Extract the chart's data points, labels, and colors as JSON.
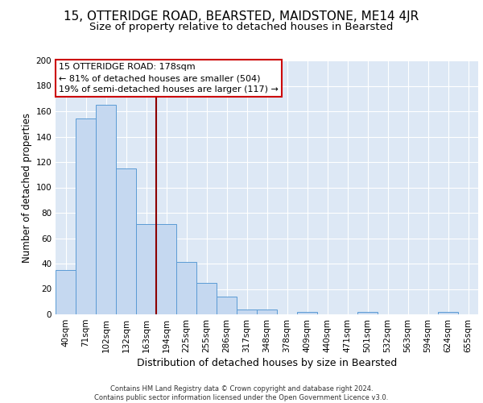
{
  "title": "15, OTTERIDGE ROAD, BEARSTED, MAIDSTONE, ME14 4JR",
  "subtitle": "Size of property relative to detached houses in Bearsted",
  "xlabel": "Distribution of detached houses by size in Bearsted",
  "ylabel": "Number of detached properties",
  "footer_line1": "Contains HM Land Registry data © Crown copyright and database right 2024.",
  "footer_line2": "Contains public sector information licensed under the Open Government Licence v3.0.",
  "bar_labels": [
    "40sqm",
    "71sqm",
    "102sqm",
    "132sqm",
    "163sqm",
    "194sqm",
    "225sqm",
    "255sqm",
    "286sqm",
    "317sqm",
    "348sqm",
    "378sqm",
    "409sqm",
    "440sqm",
    "471sqm",
    "501sqm",
    "532sqm",
    "563sqm",
    "594sqm",
    "624sqm",
    "655sqm"
  ],
  "bar_values": [
    35,
    154,
    165,
    115,
    71,
    71,
    41,
    25,
    14,
    4,
    4,
    0,
    2,
    0,
    0,
    2,
    0,
    0,
    0,
    2,
    0
  ],
  "bar_color": "#c5d8f0",
  "bar_edge_color": "#5b9bd5",
  "background_color": "#dde8f5",
  "ylim": [
    0,
    200
  ],
  "yticks": [
    0,
    20,
    40,
    60,
    80,
    100,
    120,
    140,
    160,
    180,
    200
  ],
  "vline_color": "#8b0000",
  "annotation_text_line1": "15 OTTERIDGE ROAD: 178sqm",
  "annotation_text_line2": "← 81% of detached houses are smaller (504)",
  "annotation_text_line3": "19% of semi-detached houses are larger (117) →",
  "annotation_box_color": "white",
  "annotation_box_edge_color": "#cc0000",
  "title_fontsize": 11,
  "subtitle_fontsize": 9.5,
  "axis_fontsize": 8.5,
  "tick_fontsize": 7.5,
  "annotation_fontsize": 8,
  "footer_fontsize": 6
}
